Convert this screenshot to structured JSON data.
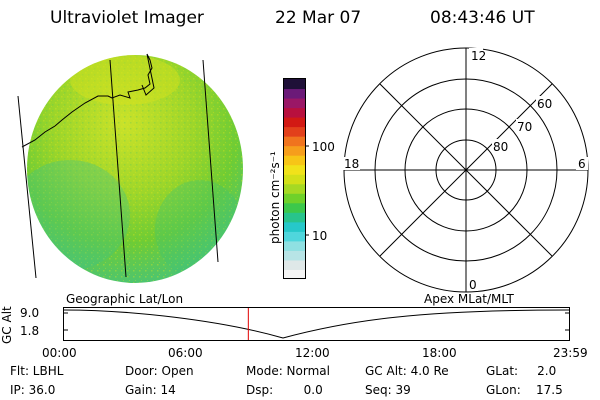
{
  "header": {
    "instrument": "Ultraviolet Imager",
    "date": "22 Mar 07",
    "time": "08:43:46 UT"
  },
  "colorbar": {
    "unit_label": "photon cm⁻²s⁻¹",
    "tick_labels": [
      "100",
      "10"
    ],
    "colors": [
      "#f5f5f5",
      "#dfe8e8",
      "#b7e4e6",
      "#8fe0e2",
      "#4fd6dc",
      "#26c8c9",
      "#28c48c",
      "#3cc84b",
      "#6fd12a",
      "#a6d923",
      "#d3e019",
      "#f1e21a",
      "#f7c517",
      "#f69e1c",
      "#f0741e",
      "#e2401b",
      "#d21914",
      "#b8103e",
      "#9a1766",
      "#6b1a78",
      "#1f1038"
    ]
  },
  "polar_plot": {
    "hour_labels": [
      "12",
      "18",
      "6",
      "0"
    ],
    "lat_labels": [
      "60",
      "70",
      "80"
    ]
  },
  "timeline": {
    "y_axis_title": "GC Alt",
    "y_ticks": [
      "9.0",
      "1.8"
    ],
    "left_label": "Geographic Lat/Lon",
    "right_label": "Apex  MLat/MLT",
    "x_ticks": [
      "00:00",
      "06:00",
      "12:00",
      "18:00",
      "23:59"
    ],
    "current_marker_fraction": 0.365
  },
  "info": {
    "filter": "Flt: LBHL",
    "ip": "IP: 36.0",
    "door": "Door: Open",
    "gain": "Gain: 14",
    "mode": "Mode: Normal",
    "dsp": "Dsp:        0.0",
    "gc_alt": "GC Alt: 4.0 Re",
    "seq": "Seq: 39",
    "glat": "GLat:     2.0",
    "glon": "GLon:    17.5"
  }
}
